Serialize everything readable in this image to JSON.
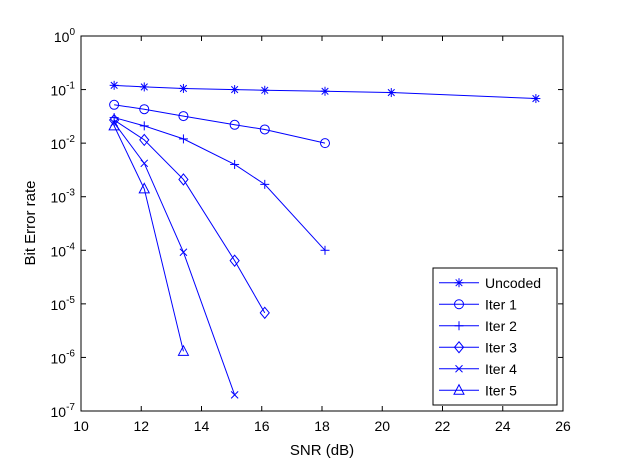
{
  "chart_data": {
    "type": "line",
    "xlabel": "SNR (dB)",
    "ylabel": "Bit Error rate",
    "xlim": [
      10,
      26
    ],
    "ylim": [
      1e-07,
      1
    ],
    "yscale": "log",
    "grid": false,
    "legend_position": "bottom-right",
    "line_color": "#0000ff",
    "x_ticks": [
      {
        "value": 10,
        "label": "10"
      },
      {
        "value": 12,
        "label": "12"
      },
      {
        "value": 14,
        "label": "14"
      },
      {
        "value": 16,
        "label": "16"
      },
      {
        "value": 18,
        "label": "18"
      },
      {
        "value": 20,
        "label": "20"
      },
      {
        "value": 22,
        "label": "22"
      },
      {
        "value": 24,
        "label": "24"
      },
      {
        "value": 26,
        "label": "26"
      }
    ],
    "y_ticks": [
      {
        "value": 1,
        "base": "10",
        "exp": "0"
      },
      {
        "value": 0.1,
        "base": "10",
        "exp": "-1"
      },
      {
        "value": 0.01,
        "base": "10",
        "exp": "-2"
      },
      {
        "value": 0.001,
        "base": "10",
        "exp": "-3"
      },
      {
        "value": 0.0001,
        "base": "10",
        "exp": "-4"
      },
      {
        "value": 1e-05,
        "base": "10",
        "exp": "-5"
      },
      {
        "value": 1e-06,
        "base": "10",
        "exp": "-6"
      },
      {
        "value": 1e-07,
        "base": "10",
        "exp": "-7"
      }
    ],
    "series": [
      {
        "name": "Uncoded",
        "marker": "asterisk",
        "x": [
          11.1,
          12.1,
          13.4,
          15.1,
          16.1,
          18.1,
          20.3,
          25.1
        ],
        "y": [
          0.12,
          0.112,
          0.105,
          0.1,
          0.097,
          0.093,
          0.088,
          0.068
        ]
      },
      {
        "name": "Iter 1",
        "marker": "circle",
        "x": [
          11.1,
          12.1,
          13.4,
          15.1,
          16.1,
          18.1
        ],
        "y": [
          0.052,
          0.043,
          0.032,
          0.022,
          0.018,
          0.01
        ]
      },
      {
        "name": "Iter 2",
        "marker": "plus",
        "x": [
          11.1,
          12.1,
          13.4,
          15.1,
          16.1,
          18.1
        ],
        "y": [
          0.03,
          0.021,
          0.012,
          0.004,
          0.0017,
          0.0001
        ]
      },
      {
        "name": "Iter 3",
        "marker": "diamond",
        "x": [
          11.1,
          12.1,
          13.4,
          15.1,
          16.1
        ],
        "y": [
          0.027,
          0.0115,
          0.0021,
          6.4e-05,
          6.8e-06
        ]
      },
      {
        "name": "Iter 4",
        "marker": "x",
        "x": [
          11.1,
          12.1,
          13.4,
          15.1
        ],
        "y": [
          0.024,
          0.0042,
          9.2e-05,
          2e-07
        ]
      },
      {
        "name": "Iter 5",
        "marker": "triangle",
        "x": [
          11.1,
          12.1,
          13.4
        ],
        "y": [
          0.021,
          0.0014,
          1.3e-06
        ]
      }
    ]
  }
}
